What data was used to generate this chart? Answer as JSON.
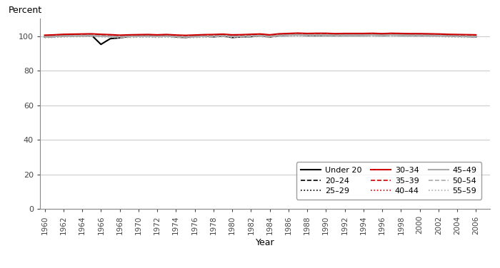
{
  "years": [
    1960,
    1961,
    1962,
    1963,
    1964,
    1965,
    1966,
    1967,
    1968,
    1969,
    1970,
    1971,
    1972,
    1973,
    1974,
    1975,
    1976,
    1977,
    1978,
    1979,
    1980,
    1981,
    1982,
    1983,
    1984,
    1985,
    1986,
    1987,
    1988,
    1989,
    1990,
    1991,
    1992,
    1993,
    1994,
    1995,
    1996,
    1997,
    1998,
    1999,
    2000,
    2001,
    2002,
    2003,
    2004,
    2005,
    2006
  ],
  "series": {
    "Under 20": {
      "color": "#000000",
      "linestyle": "solid",
      "linewidth": 1.5,
      "values": [
        99.5,
        99.8,
        100.2,
        100.4,
        100.3,
        100.5,
        95.2,
        98.5,
        99.0,
        99.8,
        100.2,
        100.4,
        100.1,
        100.3,
        99.5,
        99.2,
        99.8,
        100.0,
        99.6,
        100.1,
        99.2,
        99.6,
        99.7,
        100.3,
        99.5,
        100.3,
        100.6,
        100.8,
        100.4,
        100.4,
        100.5,
        100.4,
        100.5,
        100.5,
        100.5,
        100.7,
        100.4,
        100.7,
        100.5,
        100.5,
        100.4,
        100.5,
        100.4,
        100.2,
        100.0,
        99.8,
        99.6
      ]
    },
    "20–24": {
      "color": "#000000",
      "linestyle": "dashed",
      "linewidth": 1.2,
      "values": [
        99.5,
        99.7,
        100.0,
        100.1,
        100.2,
        100.3,
        100.2,
        100.0,
        99.8,
        100.0,
        100.1,
        100.2,
        100.0,
        100.2,
        99.9,
        99.7,
        99.9,
        100.1,
        100.2,
        100.4,
        99.9,
        100.0,
        100.2,
        100.4,
        99.9,
        100.5,
        100.7,
        100.9,
        100.7,
        100.8,
        100.8,
        100.6,
        100.7,
        100.7,
        100.7,
        100.8,
        100.6,
        100.8,
        100.7,
        100.6,
        100.5,
        100.4,
        100.3,
        100.1,
        100.0,
        99.9,
        99.8
      ]
    },
    "25–29": {
      "color": "#000000",
      "linestyle": "dotted",
      "linewidth": 1.2,
      "values": [
        99.3,
        99.5,
        99.7,
        99.8,
        99.9,
        100.0,
        99.9,
        99.7,
        99.6,
        99.8,
        99.9,
        100.0,
        99.8,
        100.0,
        99.7,
        99.5,
        99.7,
        99.9,
        100.0,
        100.2,
        99.7,
        99.8,
        100.0,
        100.2,
        99.7,
        100.3,
        100.5,
        100.7,
        100.5,
        100.6,
        100.6,
        100.4,
        100.5,
        100.5,
        100.5,
        100.6,
        100.4,
        100.6,
        100.5,
        100.4,
        100.4,
        100.3,
        100.2,
        100.0,
        99.9,
        99.8,
        99.7
      ]
    },
    "30–34": {
      "color": "#cc0000",
      "linestyle": "solid",
      "linewidth": 1.5,
      "values": [
        100.5,
        100.7,
        101.0,
        101.1,
        101.2,
        101.3,
        101.0,
        100.8,
        100.5,
        100.7,
        100.8,
        100.9,
        100.7,
        100.9,
        100.6,
        100.4,
        100.6,
        100.8,
        100.9,
        101.1,
        100.7,
        100.8,
        101.0,
        101.2,
        100.7,
        101.3,
        101.5,
        101.7,
        101.5,
        101.6,
        101.6,
        101.4,
        101.5,
        101.5,
        101.5,
        101.6,
        101.4,
        101.6,
        101.5,
        101.4,
        101.4,
        101.3,
        101.2,
        101.0,
        100.9,
        100.8,
        100.7
      ]
    },
    "35–39": {
      "color": "#cc0000",
      "linestyle": "dashed",
      "linewidth": 1.2,
      "values": [
        100.2,
        100.4,
        100.7,
        100.8,
        100.9,
        101.0,
        100.7,
        100.5,
        100.2,
        100.4,
        100.5,
        100.6,
        100.4,
        100.6,
        100.3,
        100.1,
        100.3,
        100.5,
        100.6,
        100.8,
        100.4,
        100.5,
        100.7,
        100.9,
        100.4,
        101.0,
        101.2,
        101.4,
        101.2,
        101.3,
        101.3,
        101.1,
        101.2,
        101.2,
        101.2,
        101.3,
        101.1,
        101.3,
        101.2,
        101.1,
        101.1,
        101.0,
        100.9,
        100.7,
        100.6,
        100.5,
        100.4
      ]
    },
    "40–44": {
      "color": "#cc0000",
      "linestyle": "dotted",
      "linewidth": 1.2,
      "values": [
        99.9,
        100.1,
        100.4,
        100.5,
        100.6,
        100.7,
        100.4,
        100.2,
        99.9,
        100.1,
        100.2,
        100.3,
        100.1,
        100.3,
        100.0,
        99.8,
        100.0,
        100.2,
        100.3,
        100.5,
        100.1,
        100.2,
        100.4,
        100.6,
        100.1,
        100.7,
        100.9,
        101.1,
        100.9,
        101.0,
        101.0,
        100.8,
        100.9,
        100.9,
        100.9,
        101.0,
        100.8,
        101.0,
        100.9,
        100.8,
        100.8,
        100.7,
        100.6,
        100.4,
        100.3,
        100.2,
        100.1
      ]
    },
    "45–49": {
      "color": "#aaaaaa",
      "linestyle": "solid",
      "linewidth": 1.5,
      "values": [
        99.6,
        99.8,
        100.1,
        100.2,
        100.3,
        100.4,
        100.1,
        99.9,
        99.6,
        99.8,
        99.9,
        100.0,
        99.8,
        100.0,
        99.7,
        99.5,
        99.7,
        99.9,
        100.0,
        100.2,
        99.8,
        99.9,
        100.1,
        100.3,
        99.8,
        100.4,
        100.6,
        100.8,
        100.6,
        100.7,
        100.7,
        100.5,
        100.6,
        100.6,
        100.6,
        100.7,
        100.5,
        100.7,
        100.6,
        100.5,
        100.5,
        100.4,
        100.3,
        100.1,
        100.0,
        99.9,
        99.8
      ]
    },
    "50–54": {
      "color": "#aaaaaa",
      "linestyle": "dashed",
      "linewidth": 1.2,
      "values": [
        99.3,
        99.5,
        99.8,
        99.9,
        100.0,
        100.1,
        99.8,
        99.6,
        99.3,
        99.5,
        99.6,
        99.7,
        99.5,
        99.7,
        99.4,
        99.2,
        99.4,
        99.6,
        99.7,
        99.9,
        99.5,
        99.6,
        99.8,
        100.0,
        99.5,
        100.1,
        100.3,
        100.5,
        100.3,
        100.4,
        100.4,
        100.2,
        100.3,
        100.3,
        100.3,
        100.4,
        100.2,
        100.4,
        100.3,
        100.2,
        100.2,
        100.1,
        100.0,
        99.8,
        99.7,
        99.6,
        99.5
      ]
    },
    "55–59": {
      "color": "#aaaaaa",
      "linestyle": "dotted",
      "linewidth": 1.2,
      "values": [
        99.0,
        99.2,
        99.5,
        99.6,
        99.7,
        99.8,
        99.5,
        99.3,
        99.0,
        99.2,
        99.3,
        99.4,
        99.2,
        99.4,
        99.1,
        98.9,
        99.1,
        99.3,
        99.4,
        99.6,
        99.2,
        99.3,
        99.5,
        99.7,
        99.2,
        99.8,
        100.0,
        100.2,
        100.0,
        100.1,
        100.1,
        99.9,
        100.0,
        100.0,
        100.0,
        100.1,
        99.9,
        100.1,
        100.0,
        99.9,
        99.9,
        99.8,
        99.7,
        99.5,
        99.4,
        99.3,
        99.2
      ]
    }
  },
  "xlabel": "Year",
  "ylabel": "Percent",
  "ylim": [
    0,
    110
  ],
  "yticks": [
    0,
    20,
    40,
    60,
    80,
    100
  ],
  "xlim": [
    1959.5,
    2007.5
  ],
  "xticks": [
    1960,
    1962,
    1964,
    1966,
    1968,
    1970,
    1972,
    1974,
    1976,
    1978,
    1980,
    1982,
    1984,
    1986,
    1988,
    1990,
    1992,
    1994,
    1996,
    1998,
    2000,
    2002,
    2004,
    2006
  ],
  "bg_color": "#ffffff",
  "grid_color": "#cccccc"
}
